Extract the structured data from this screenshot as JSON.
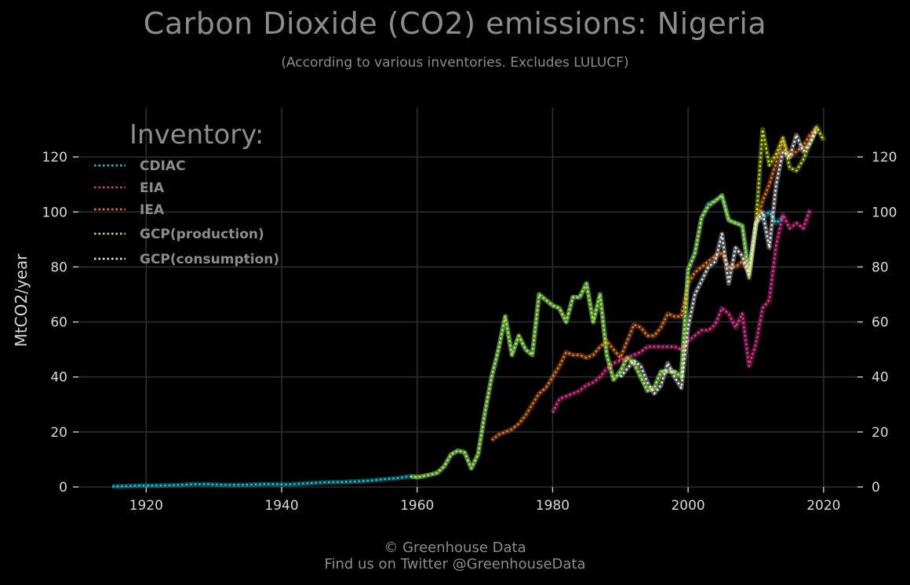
{
  "header": {
    "title": "Carbon Dioxide (CO2) emissions: Nigeria",
    "subtitle": "(According to various inventories. Excludes LULUCF)"
  },
  "footer": {
    "line1": "© Greenhouse Data",
    "line2": "Find us on Twitter @GreenhouseData"
  },
  "chart_data": {
    "type": "line",
    "title": "Carbon Dioxide (CO2) emissions: Nigeria",
    "subtitle": "(According to various inventories. Excludes LULUCF)",
    "xlabel": "",
    "ylabel": "MtCO2/year",
    "xlim": [
      1910,
      2025
    ],
    "ylim": [
      0,
      138
    ],
    "xticks": [
      1920,
      1940,
      1960,
      1980,
      2000,
      2020
    ],
    "yticks": [
      0,
      20,
      40,
      60,
      80,
      100,
      120
    ],
    "grid": true,
    "legend_title": "Inventory:",
    "legend_position": "top-left",
    "series": [
      {
        "name": "CDIAC",
        "color": "#17c6d8",
        "x": [
          1915,
          1917,
          1919,
          1921,
          1923,
          1925,
          1927,
          1929,
          1931,
          1933,
          1935,
          1937,
          1939,
          1941,
          1943,
          1945,
          1947,
          1949,
          1951,
          1953,
          1955,
          1957,
          1959,
          1960,
          1961,
          1962,
          1963,
          1964,
          1965,
          1966,
          1967,
          1968,
          1969,
          1970,
          1971,
          1972,
          1973,
          1974,
          1975,
          1976,
          1977,
          1978,
          1979,
          1980,
          1981,
          1982,
          1983,
          1984,
          1985,
          1986,
          1987,
          1988,
          1989,
          1990,
          1991,
          1992,
          1993,
          1994,
          1995,
          1996,
          1997,
          1998,
          1999,
          2000,
          2001,
          2002,
          2003,
          2004,
          2005,
          2006,
          2007,
          2008,
          2009,
          2010,
          2011,
          2012,
          2013,
          2014
        ],
        "y": [
          0.2,
          0.3,
          0.5,
          0.5,
          0.6,
          0.7,
          1.0,
          1.0,
          0.8,
          0.7,
          0.8,
          1.0,
          1.0,
          0.9,
          1.2,
          1.5,
          1.7,
          1.8,
          2.0,
          2.3,
          2.8,
          3.2,
          3.9,
          3.6,
          4.0,
          4.5,
          5.2,
          7.5,
          11.8,
          13.2,
          12.6,
          6.8,
          12.0,
          27.0,
          40.0,
          50.0,
          62.0,
          48.0,
          55.0,
          50.0,
          48.0,
          70.0,
          68.0,
          66.0,
          65.0,
          60.0,
          69.0,
          69.0,
          74.0,
          60.0,
          70.0,
          48.0,
          39.0,
          42.0,
          47.0,
          45.0,
          40.0,
          35.0,
          36.0,
          42.0,
          42.0,
          42.0,
          40.0,
          79.0,
          85.0,
          98.0,
          103.0,
          104.0,
          106.0,
          97.0,
          96.0,
          95.0,
          79.0,
          96.0,
          98.0,
          100.0,
          96.0,
          98.0
        ]
      },
      {
        "name": "EIA",
        "color": "#f2339a",
        "x": [
          1980,
          1981,
          1982,
          1983,
          1984,
          1985,
          1986,
          1987,
          1988,
          1989,
          1990,
          1991,
          1992,
          1993,
          1994,
          1995,
          1996,
          1997,
          1998,
          1999,
          2000,
          2001,
          2002,
          2003,
          2004,
          2005,
          2006,
          2007,
          2008,
          2009,
          2010,
          2011,
          2012,
          2013,
          2014,
          2015,
          2016,
          2017,
          2018
        ],
        "y": [
          27,
          32,
          33,
          34,
          35,
          37,
          38,
          40,
          43,
          45,
          46,
          47,
          48,
          49,
          51,
          51,
          51,
          51,
          51,
          50,
          53,
          55,
          57,
          57,
          59,
          65,
          63,
          58,
          63,
          44,
          52,
          65,
          68,
          88,
          99,
          94,
          96,
          94,
          101
        ]
      },
      {
        "name": "IEA",
        "color": "#f47a20",
        "x": [
          1971,
          1972,
          1973,
          1974,
          1975,
          1976,
          1977,
          1978,
          1979,
          1980,
          1981,
          1982,
          1983,
          1984,
          1985,
          1986,
          1987,
          1988,
          1989,
          1990,
          1991,
          1992,
          1993,
          1994,
          1995,
          1996,
          1997,
          1998,
          1999,
          2000,
          2001,
          2002,
          2003,
          2004,
          2005,
          2006,
          2007,
          2008,
          2009,
          2010,
          2011,
          2012,
          2013,
          2014,
          2015,
          2016,
          2017,
          2018,
          2019
        ],
        "y": [
          17,
          19,
          20,
          21,
          23,
          26,
          30,
          34,
          36,
          40,
          44,
          49,
          48,
          48,
          47,
          48,
          51,
          53,
          50,
          47,
          53,
          59,
          58,
          55,
          55,
          58,
          63,
          62,
          62,
          74,
          78,
          80,
          82,
          84,
          85,
          80,
          80,
          82,
          78,
          95,
          104,
          110,
          118,
          126,
          120,
          122,
          124,
          128,
          131
        ]
      },
      {
        "name": "GCP(production)",
        "color": "#c5e61c",
        "x": [
          1959,
          1960,
          1961,
          1962,
          1963,
          1964,
          1965,
          1966,
          1967,
          1968,
          1969,
          1970,
          1971,
          1972,
          1973,
          1974,
          1975,
          1976,
          1977,
          1978,
          1979,
          1980,
          1981,
          1982,
          1983,
          1984,
          1985,
          1986,
          1987,
          1988,
          1989,
          1990,
          1991,
          1992,
          1993,
          1994,
          1995,
          1996,
          1997,
          1998,
          1999,
          2000,
          2001,
          2002,
          2003,
          2004,
          2005,
          2006,
          2007,
          2008,
          2009,
          2010,
          2011,
          2012,
          2013,
          2014,
          2015,
          2016,
          2017,
          2018,
          2019,
          2020
        ],
        "y": [
          3.8,
          3.6,
          4.0,
          4.5,
          5.2,
          7.5,
          11.8,
          13.2,
          12.6,
          6.8,
          12.0,
          27.0,
          40.0,
          50.0,
          62.0,
          48.0,
          55.0,
          50.0,
          48.0,
          70.0,
          68.0,
          66.0,
          65.0,
          60.0,
          69.0,
          69.0,
          74.0,
          60.0,
          70.0,
          48.0,
          39.0,
          42.0,
          47.0,
          45.0,
          40.0,
          35.0,
          36.0,
          42.0,
          42.0,
          42.0,
          40.0,
          79.0,
          85.0,
          98.0,
          102.0,
          104.0,
          106.0,
          97.0,
          96.0,
          95.0,
          76.0,
          95.0,
          130.0,
          117.0,
          121.0,
          127.0,
          116.0,
          115.0,
          119.0,
          125.0,
          131.0,
          126.0
        ]
      },
      {
        "name": "GCP(consumption)",
        "color": "#eeeeee",
        "x": [
          1990,
          1991,
          1992,
          1993,
          1994,
          1995,
          1996,
          1997,
          1998,
          1999,
          2000,
          2001,
          2002,
          2003,
          2004,
          2005,
          2006,
          2007,
          2008,
          2009,
          2010,
          2011,
          2012,
          2013,
          2014,
          2015,
          2016,
          2017,
          2018,
          2019
        ],
        "y": [
          40,
          43,
          46,
          44,
          38,
          34,
          37,
          45,
          40,
          36,
          58,
          70,
          75,
          80,
          82,
          92,
          74,
          87,
          84,
          77,
          96,
          100,
          87,
          110,
          122,
          120,
          128,
          122,
          125,
          130
        ]
      }
    ]
  }
}
